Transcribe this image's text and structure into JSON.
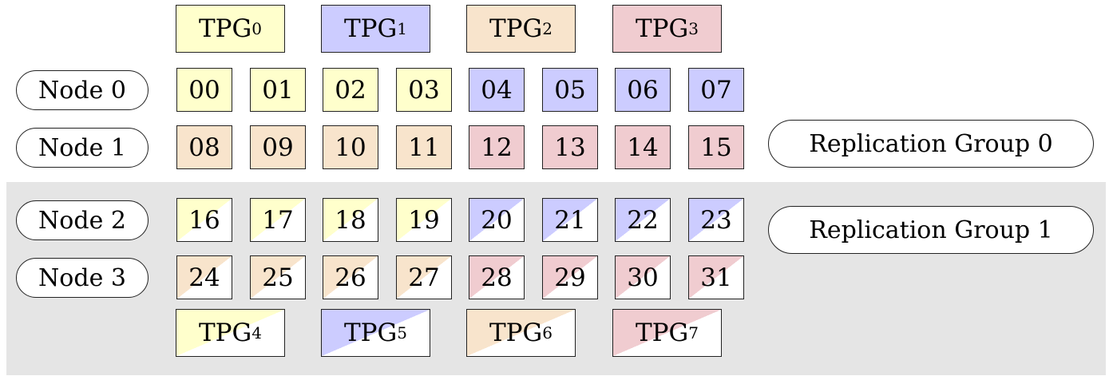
{
  "colors": {
    "yellow": "#ffffcc",
    "blue": "#ccccff",
    "peach": "#f8e4cc",
    "pink": "#f0ccd0",
    "shade": "#e5e5e5"
  },
  "tpg_top": [
    {
      "label": "TPG",
      "sub": "0",
      "color": "yellow"
    },
    {
      "label": "TPG",
      "sub": "1",
      "color": "blue"
    },
    {
      "label": "TPG",
      "sub": "2",
      "color": "peach"
    },
    {
      "label": "TPG",
      "sub": "3",
      "color": "pink"
    }
  ],
  "tpg_bottom": [
    {
      "label": "TPG",
      "sub": "4",
      "color": "yellow"
    },
    {
      "label": "TPG",
      "sub": "5",
      "color": "blue"
    },
    {
      "label": "TPG",
      "sub": "6",
      "color": "peach"
    },
    {
      "label": "TPG",
      "sub": "7",
      "color": "pink"
    }
  ],
  "nodes": [
    "Node 0",
    "Node 1",
    "Node 2",
    "Node 3"
  ],
  "rows": [
    {
      "cells": [
        "00",
        "01",
        "02",
        "03",
        "04",
        "05",
        "06",
        "07"
      ],
      "colors": [
        "yellow",
        "yellow",
        "yellow",
        "yellow",
        "blue",
        "blue",
        "blue",
        "blue"
      ],
      "half": false
    },
    {
      "cells": [
        "08",
        "09",
        "10",
        "11",
        "12",
        "13",
        "14",
        "15"
      ],
      "colors": [
        "peach",
        "peach",
        "peach",
        "peach",
        "pink",
        "pink",
        "pink",
        "pink"
      ],
      "half": false
    },
    {
      "cells": [
        "16",
        "17",
        "18",
        "19",
        "20",
        "21",
        "22",
        "23"
      ],
      "colors": [
        "yellow",
        "yellow",
        "yellow",
        "yellow",
        "blue",
        "blue",
        "blue",
        "blue"
      ],
      "half": true
    },
    {
      "cells": [
        "24",
        "25",
        "26",
        "27",
        "28",
        "29",
        "30",
        "31"
      ],
      "colors": [
        "peach",
        "peach",
        "peach",
        "peach",
        "pink",
        "pink",
        "pink",
        "pink"
      ],
      "half": true
    }
  ],
  "replication_groups": [
    "Replication Group 0",
    "Replication Group 1"
  ]
}
